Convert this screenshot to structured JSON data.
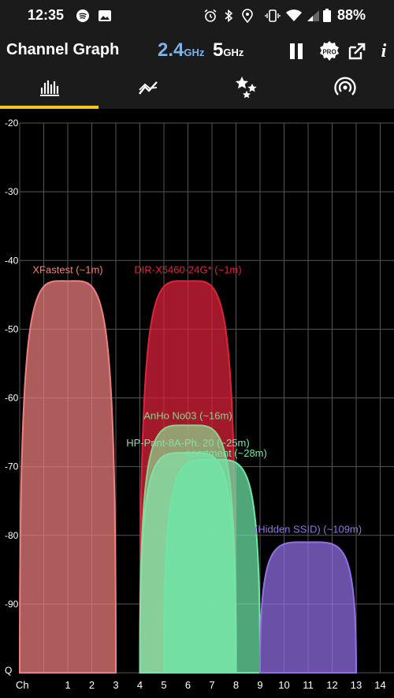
{
  "status": {
    "time": "12:35",
    "battery": "88%"
  },
  "app_bar": {
    "title": "Channel Graph",
    "band_24_value": "2.4",
    "band_24_unit": "GHz",
    "band_5_value": "5",
    "band_5_unit": "GHz",
    "pro_label": "PRO",
    "info_label": "i"
  },
  "tabs": [
    {
      "icon": "channel-graph-icon"
    },
    {
      "icon": "time-graph-icon"
    },
    {
      "icon": "channel-rating-icon"
    },
    {
      "icon": "access-points-icon"
    }
  ],
  "colors": {
    "accent": "#f5c518",
    "background": "#000000",
    "grid": "#555555"
  },
  "chart_data": {
    "type": "area",
    "x_axis_label": "Ch",
    "y_bottom_label": "Q",
    "x_ticks": [
      "1",
      "2",
      "3",
      "4",
      "5",
      "6",
      "7",
      "8",
      "9",
      "10",
      "11",
      "12",
      "13",
      "14"
    ],
    "y_ticks": [
      "-20",
      "-30",
      "-40",
      "-50",
      "-60",
      "-70",
      "-80",
      "-90"
    ],
    "ylim": [
      -100,
      -20
    ],
    "xlim": [
      -1,
      15
    ],
    "series": [
      {
        "name": "XFastest (~1m)",
        "channel": 1,
        "width": 4,
        "signal": -43,
        "color": "#f08080"
      },
      {
        "name": "DIR-X5460-24G* (~1m)",
        "channel": 6,
        "width": 4,
        "signal": -43,
        "color": "#e0223c"
      },
      {
        "name": "AnHo No03 (~16m)",
        "channel": 6,
        "width": 4,
        "signal": -64,
        "color": "#8fd18a"
      },
      {
        "name": "HP-Print-8A-Ph. 20 (~25m)",
        "channel": 6,
        "width": 4,
        "signal": -68,
        "color": "#82e0a8"
      },
      {
        "name": "apartment (~28m)",
        "channel": 7,
        "width": 4,
        "signal": -69,
        "color": "#6ee6a6"
      },
      {
        "name": "(Hidden SSID) (~109m)",
        "channel": 11,
        "width": 4,
        "signal": -81,
        "color": "#9370e8"
      }
    ]
  }
}
